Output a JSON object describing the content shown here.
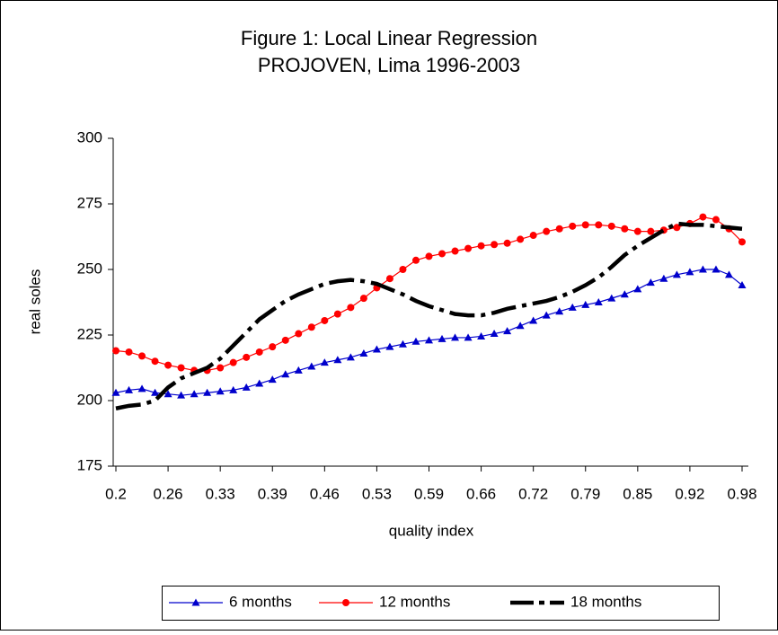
{
  "chart_data": {
    "type": "line",
    "title": "Figure 1: Local Linear Regression",
    "subtitle": "PROJOVEN, Lima 1996-2003",
    "x_label": "quality index",
    "y_label": "real soles",
    "categories": [
      "0.2",
      null,
      null,
      null,
      "0.26",
      null,
      null,
      null,
      "0.33",
      null,
      null,
      null,
      "0.39",
      null,
      null,
      null,
      "0.46",
      null,
      null,
      null,
      "0.53",
      null,
      null,
      null,
      "0.59",
      null,
      null,
      null,
      "0.66",
      null,
      null,
      null,
      "0.72",
      null,
      null,
      null,
      "0.79",
      null,
      null,
      null,
      "0.85",
      null,
      null,
      null,
      "0.92",
      null,
      null,
      null,
      "0.98"
    ],
    "ylim": [
      175,
      300
    ],
    "yticks": [
      175,
      200,
      225,
      250,
      275,
      300
    ],
    "legend": "bottom",
    "series": [
      {
        "name": "6 months",
        "color": "#0000cc",
        "marker": "triangle",
        "dash": "solid",
        "values": [
          203,
          204,
          204.5,
          203,
          202.5,
          202,
          202.5,
          203,
          203.5,
          204,
          205,
          206.5,
          208,
          210,
          211.5,
          213,
          214.5,
          215.5,
          216.5,
          218,
          219.5,
          220.5,
          221.5,
          222.5,
          223,
          223.5,
          224,
          224,
          224.5,
          225.5,
          226.5,
          228.5,
          230.5,
          232.5,
          234,
          235.5,
          236.5,
          237.5,
          239,
          240.5,
          242.5,
          245,
          246.5,
          248,
          249,
          250,
          250,
          248,
          244
        ]
      },
      {
        "name": "12 months",
        "color": "#ff0000",
        "marker": "circle",
        "dash": "solid",
        "values": [
          219,
          218.5,
          217,
          215,
          213.5,
          212.5,
          211.5,
          211.5,
          212.5,
          214.5,
          216.5,
          218.5,
          220.5,
          223,
          225.5,
          228,
          230.5,
          233,
          235.5,
          239,
          243,
          246.5,
          250,
          253.5,
          255,
          256,
          257,
          258,
          259,
          259.5,
          260,
          261.5,
          263,
          264.5,
          265.5,
          266.5,
          267,
          267,
          266.5,
          265.5,
          264.5,
          264.5,
          265,
          266,
          267.5,
          270,
          269,
          265.5,
          260.5
        ]
      },
      {
        "name": "18 months",
        "color": "#000000",
        "marker": "none",
        "dash": "dashed",
        "values": [
          197,
          198,
          198.5,
          200,
          205,
          208.5,
          210.5,
          212.5,
          216,
          221,
          226,
          231,
          234.5,
          238,
          240.5,
          242.5,
          244.5,
          245.5,
          246,
          245.5,
          244.5,
          242.5,
          240.5,
          238,
          236,
          234.5,
          233,
          232.5,
          232.5,
          233.5,
          235,
          236,
          237,
          238,
          239.5,
          241.5,
          244,
          247,
          251,
          255.5,
          259,
          262,
          265,
          267.5,
          267,
          267,
          266.5,
          266,
          265.5
        ]
      }
    ]
  }
}
